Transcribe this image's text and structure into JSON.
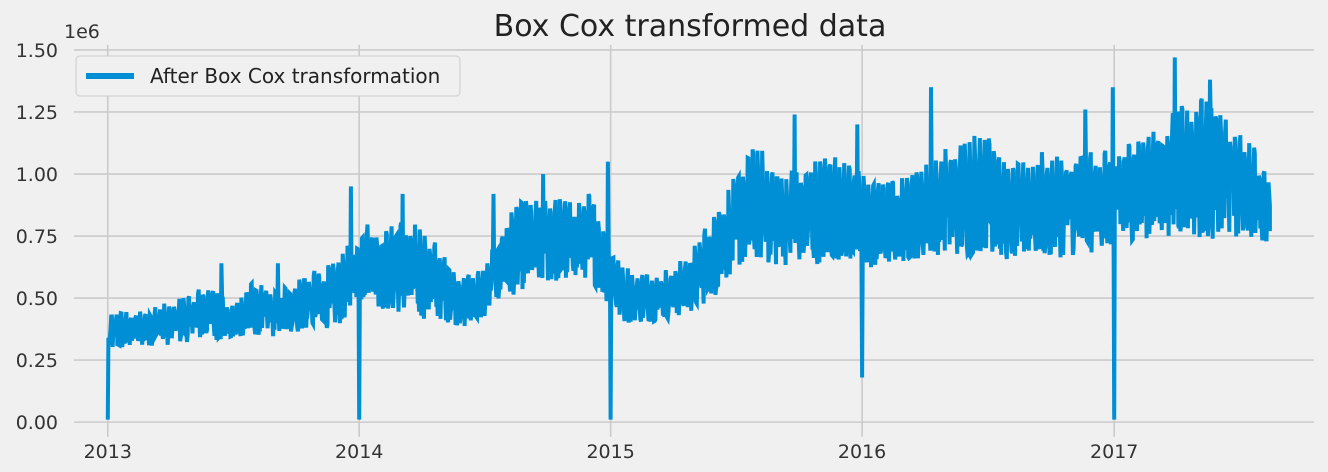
{
  "chart_data": {
    "type": "line",
    "title": "Box Cox transformed data",
    "xlabel": "",
    "ylabel": "",
    "y_offset_label": "1e6",
    "x_tick_labels": [
      "2013",
      "2014",
      "2015",
      "2016",
      "2017"
    ],
    "y_tick_labels": [
      "0.00",
      "0.25",
      "0.50",
      "0.75",
      "1.00",
      "1.25",
      "1.50"
    ],
    "xlim": [
      "2012-11-13",
      "2017-10-18"
    ],
    "ylim": [
      -0.06,
      1.52
    ],
    "grid": true,
    "legend_position": "top-left",
    "series": [
      {
        "name": "After Box Cox transformation",
        "color": "#008fd5",
        "envelope": {
          "dates": [
            "2013-01-01",
            "2013-02-01",
            "2013-03-01",
            "2013-04-01",
            "2013-05-01",
            "2013-06-01",
            "2013-07-01",
            "2013-08-01",
            "2013-09-01",
            "2013-10-01",
            "2013-11-01",
            "2013-12-01",
            "2014-01-15",
            "2014-02-01",
            "2014-03-01",
            "2014-04-01",
            "2014-05-01",
            "2014-06-01",
            "2014-07-01",
            "2014-08-01",
            "2014-09-01",
            "2014-10-01",
            "2014-11-01",
            "2014-12-01",
            "2015-01-15",
            "2015-02-01",
            "2015-03-01",
            "2015-04-01",
            "2015-05-01",
            "2015-06-01",
            "2015-07-01",
            "2015-08-01",
            "2015-09-01",
            "2015-10-01",
            "2015-11-01",
            "2015-12-01",
            "2016-01-15",
            "2016-02-01",
            "2016-03-01",
            "2016-04-01",
            "2016-05-01",
            "2016-06-01",
            "2016-07-01",
            "2016-08-01",
            "2016-09-01",
            "2016-10-01",
            "2016-11-01",
            "2016-12-01",
            "2017-01-15",
            "2017-02-01",
            "2017-03-01",
            "2017-04-01",
            "2017-05-01",
            "2017-06-01",
            "2017-07-01",
            "2017-08-15"
          ],
          "low": [
            0.26,
            0.27,
            0.28,
            0.28,
            0.29,
            0.29,
            0.3,
            0.31,
            0.31,
            0.32,
            0.33,
            0.34,
            0.45,
            0.4,
            0.37,
            0.35,
            0.36,
            0.34,
            0.37,
            0.43,
            0.48,
            0.5,
            0.5,
            0.52,
            0.36,
            0.36,
            0.37,
            0.38,
            0.4,
            0.44,
            0.55,
            0.57,
            0.55,
            0.57,
            0.56,
            0.58,
            0.55,
            0.57,
            0.58,
            0.6,
            0.6,
            0.58,
            0.6,
            0.58,
            0.6,
            0.58,
            0.6,
            0.6,
            0.65,
            0.66,
            0.66,
            0.66,
            0.64,
            0.64,
            0.66,
            0.68
          ],
          "high": [
            0.47,
            0.48,
            0.5,
            0.52,
            0.56,
            0.62,
            0.5,
            0.62,
            0.57,
            0.63,
            0.67,
            0.7,
            0.93,
            0.82,
            0.9,
            0.87,
            0.76,
            0.63,
            0.68,
            0.92,
            0.98,
            0.97,
            0.98,
            1.0,
            0.72,
            0.65,
            0.64,
            0.67,
            0.76,
            0.95,
            1.07,
            1.23,
            1.1,
            1.12,
            1.16,
            1.18,
            1.05,
            1.03,
            1.08,
            1.12,
            1.2,
            1.25,
            1.34,
            1.1,
            1.15,
            1.2,
            1.15,
            1.22,
            1.18,
            1.27,
            1.3,
            1.4,
            1.45,
            1.37,
            1.32,
            1.05
          ]
        },
        "dips": [
          {
            "date": "2013-01-01",
            "value": 0.01
          },
          {
            "date": "2014-01-01",
            "value": 0.01
          },
          {
            "date": "2015-01-01",
            "value": 0.01
          },
          {
            "date": "2016-01-01",
            "value": 0.18
          },
          {
            "date": "2017-01-01",
            "value": 0.01
          }
        ],
        "peaks": [
          {
            "date": "2013-06-15",
            "value": 0.64
          },
          {
            "date": "2013-09-05",
            "value": 0.64
          },
          {
            "date": "2013-12-20",
            "value": 0.95
          },
          {
            "date": "2014-03-05",
            "value": 0.92
          },
          {
            "date": "2014-07-15",
            "value": 0.92
          },
          {
            "date": "2014-09-25",
            "value": 1.0
          },
          {
            "date": "2014-12-28",
            "value": 1.05
          },
          {
            "date": "2015-09-25",
            "value": 1.24
          },
          {
            "date": "2015-12-25",
            "value": 1.2
          },
          {
            "date": "2016-04-10",
            "value": 1.35
          },
          {
            "date": "2016-11-20",
            "value": 1.26
          },
          {
            "date": "2016-12-30",
            "value": 1.35
          },
          {
            "date": "2017-03-30",
            "value": 1.47
          },
          {
            "date": "2017-05-20",
            "value": 1.38
          },
          {
            "date": "2017-08-15",
            "value": 0.87
          }
        ],
        "end_date": "2017-08-15",
        "end_value": 0.77
      }
    ]
  }
}
